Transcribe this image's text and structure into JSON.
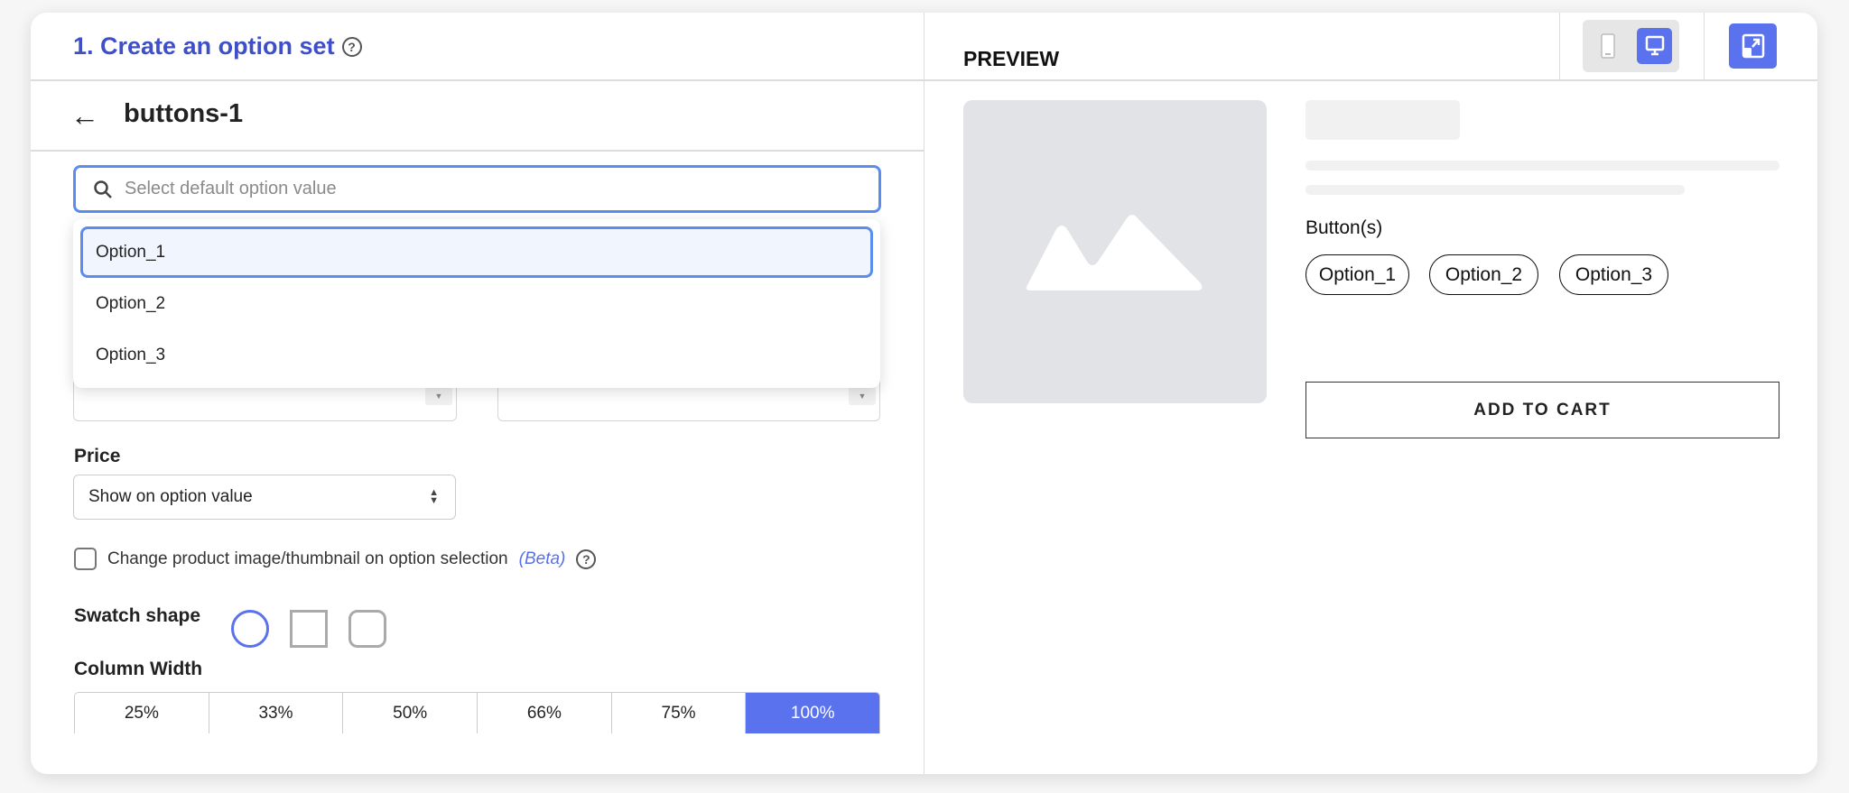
{
  "header": {
    "title": "1. Create an option set",
    "help_icon": "question-circle-icon"
  },
  "option_set": {
    "name": "buttons-1",
    "back_icon": "arrow-left-icon"
  },
  "search": {
    "placeholder": "Select default option value",
    "value": ""
  },
  "dropdown": {
    "options": [
      "Option_1",
      "Option_2",
      "Option_3"
    ],
    "highlighted": "Option_1"
  },
  "price": {
    "label": "Price",
    "selected": "Show on option value"
  },
  "change_image": {
    "label": "Change product image/thumbnail on option selection",
    "badge": "(Beta)",
    "checked": false
  },
  "swatch": {
    "label": "Swatch shape",
    "shapes": [
      "circle",
      "square",
      "rounded-square"
    ],
    "selected": "circle"
  },
  "column_width": {
    "label": "Column Width",
    "options": [
      "25%",
      "33%",
      "50%",
      "66%",
      "75%",
      "100%"
    ],
    "selected": "100%"
  },
  "preview": {
    "title": "PREVIEW",
    "device_selected": "desktop",
    "option_label": "Button(s)",
    "options": [
      "Option_1",
      "Option_2",
      "Option_3"
    ],
    "add_to_cart": "ADD TO CART"
  },
  "colors": {
    "accent": "#5b72ee",
    "title": "#3f4fc7",
    "focus": "#5b8def"
  }
}
